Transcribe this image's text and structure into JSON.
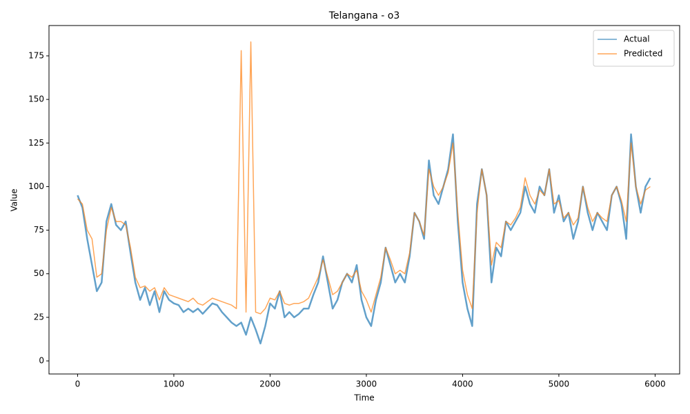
{
  "chart_data": {
    "type": "line",
    "title": "Telangana - o3",
    "x_label": "Time",
    "y_label": "Value",
    "x": [
      0,
      50,
      100,
      150,
      200,
      250,
      300,
      350,
      400,
      450,
      500,
      550,
      600,
      650,
      700,
      750,
      800,
      850,
      900,
      950,
      1000,
      1050,
      1100,
      1150,
      1200,
      1250,
      1300,
      1350,
      1400,
      1450,
      1500,
      1550,
      1600,
      1650,
      1700,
      1750,
      1800,
      1850,
      1900,
      1950,
      2000,
      2050,
      2100,
      2150,
      2200,
      2250,
      2300,
      2350,
      2400,
      2450,
      2500,
      2550,
      2600,
      2650,
      2700,
      2750,
      2800,
      2850,
      2900,
      2950,
      3000,
      3050,
      3100,
      3150,
      3200,
      3250,
      3300,
      3350,
      3400,
      3450,
      3500,
      3550,
      3600,
      3650,
      3700,
      3750,
      3800,
      3850,
      3900,
      3950,
      4000,
      4050,
      4100,
      4150,
      4200,
      4250,
      4300,
      4350,
      4400,
      4450,
      4500,
      4550,
      4600,
      4650,
      4700,
      4750,
      4800,
      4850,
      4900,
      4950,
      5000,
      5050,
      5100,
      5150,
      5200,
      5250,
      5300,
      5350,
      5400,
      5450,
      5500,
      5550,
      5600,
      5650,
      5700,
      5750,
      5800,
      5850,
      5900,
      5950
    ],
    "series": [
      {
        "name": "Actual",
        "color": "#1f77b4",
        "values": [
          95,
          88,
          70,
          55,
          40,
          45,
          80,
          90,
          78,
          75,
          80,
          62,
          45,
          35,
          42,
          32,
          40,
          28,
          40,
          35,
          33,
          32,
          28,
          30,
          28,
          30,
          27,
          30,
          33,
          32,
          28,
          25,
          22,
          20,
          22,
          15,
          25,
          18,
          10,
          20,
          33,
          30,
          40,
          25,
          28,
          25,
          27,
          30,
          30,
          38,
          45,
          60,
          45,
          30,
          35,
          45,
          50,
          45,
          55,
          35,
          25,
          20,
          35,
          45,
          65,
          55,
          45,
          50,
          45,
          60,
          85,
          80,
          70,
          115,
          95,
          90,
          100,
          110,
          130,
          80,
          45,
          30,
          20,
          90,
          110,
          95,
          45,
          65,
          60,
          80,
          75,
          80,
          85,
          100,
          90,
          85,
          100,
          95,
          110,
          85,
          95,
          80,
          85,
          70,
          80,
          100,
          85,
          75,
          85,
          80,
          75,
          95,
          100,
          90,
          70,
          130,
          100,
          85,
          100,
          105
        ]
      },
      {
        "name": "Predicted",
        "color": "#ff7f0e",
        "values": [
          93,
          90,
          75,
          70,
          48,
          50,
          75,
          88,
          80,
          80,
          78,
          65,
          48,
          42,
          43,
          40,
          42,
          35,
          42,
          38,
          37,
          36,
          35,
          34,
          36,
          33,
          32,
          34,
          36,
          35,
          34,
          33,
          32,
          30,
          178,
          28,
          183,
          28,
          27,
          30,
          36,
          35,
          40,
          33,
          32,
          33,
          33,
          34,
          36,
          42,
          48,
          58,
          48,
          38,
          40,
          45,
          50,
          48,
          52,
          40,
          35,
          28,
          38,
          48,
          65,
          58,
          50,
          52,
          50,
          62,
          85,
          80,
          72,
          110,
          100,
          95,
          100,
          108,
          125,
          85,
          52,
          38,
          30,
          85,
          110,
          95,
          55,
          68,
          65,
          80,
          78,
          82,
          88,
          105,
          95,
          90,
          98,
          95,
          110,
          90,
          92,
          82,
          85,
          78,
          82,
          100,
          88,
          80,
          85,
          82,
          80,
          95,
          100,
          92,
          80,
          125,
          100,
          90,
          98,
          100
        ]
      }
    ],
    "xlim": [
      -297,
      6255
    ],
    "ylim": [
      -7.5,
      192.4
    ],
    "xticks": [
      0,
      1000,
      2000,
      3000,
      4000,
      5000,
      6000
    ],
    "yticks": [
      0,
      25,
      50,
      75,
      100,
      125,
      150,
      175
    ],
    "legend": "upper right"
  }
}
